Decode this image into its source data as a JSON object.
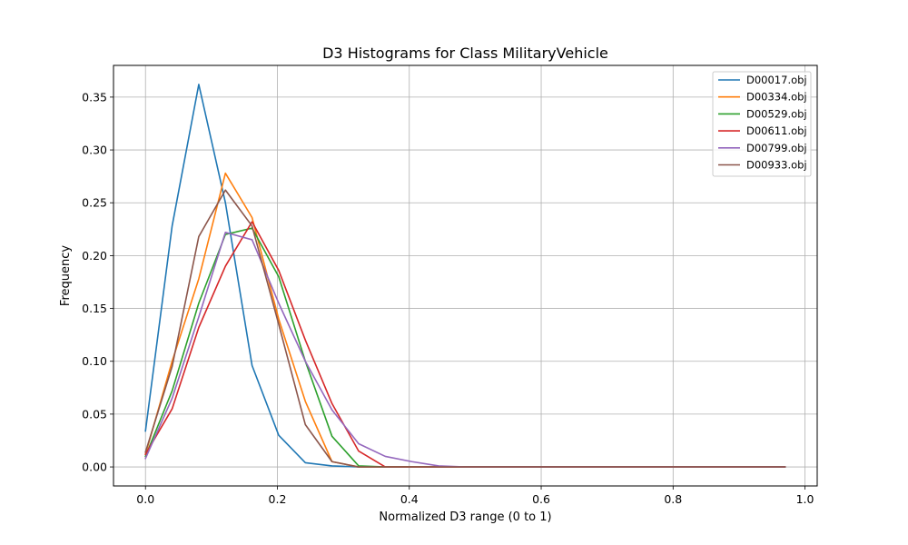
{
  "chart_data": {
    "type": "line",
    "title": "D3 Histograms for Class MilitaryVehicle",
    "xlabel": "Normalized D3 range (0 to 1)",
    "ylabel": "Frequency",
    "xlim": [
      -0.0485,
      1.0185
    ],
    "ylim": [
      -0.018,
      0.38
    ],
    "xticks": [
      0.0,
      0.2,
      0.4,
      0.6,
      0.8,
      1.0
    ],
    "xtick_labels": [
      "0.0",
      "0.2",
      "0.4",
      "0.6",
      "0.8",
      "1.0"
    ],
    "yticks": [
      0.0,
      0.05,
      0.1,
      0.15,
      0.2,
      0.25,
      0.3,
      0.35
    ],
    "ytick_labels": [
      "0.00",
      "0.05",
      "0.10",
      "0.15",
      "0.20",
      "0.25",
      "0.30",
      "0.35"
    ],
    "grid": true,
    "legend_position": "top-right",
    "x": [
      0.0,
      0.0404,
      0.0808,
      0.1212,
      0.1616,
      0.202,
      0.2424,
      0.2828,
      0.3232,
      0.3636,
      0.404,
      0.4444,
      0.4848,
      0.5253,
      0.5657,
      0.6061,
      0.6465,
      0.6869,
      0.7273,
      0.7677,
      0.8081,
      0.8485,
      0.8889,
      0.9293,
      0.9697
    ],
    "series": [
      {
        "name": "D00017.obj",
        "color": "#1f77b4",
        "values": [
          0.034,
          0.228,
          0.362,
          0.25,
          0.096,
          0.03,
          0.004,
          0.001,
          0.0,
          0.0,
          0.0,
          0.0,
          0.0,
          0.0,
          0.0,
          0.0,
          0.0,
          0.0,
          0.0,
          0.0,
          0.0,
          0.0,
          0.0,
          0.0,
          0.0
        ]
      },
      {
        "name": "D00334.obj",
        "color": "#ff7f0e",
        "values": [
          0.012,
          0.1,
          0.178,
          0.278,
          0.236,
          0.14,
          0.062,
          0.005,
          0.0,
          0.0,
          0.0,
          0.0,
          0.0,
          0.0,
          0.0,
          0.0,
          0.0,
          0.0,
          0.0,
          0.0,
          0.0,
          0.0,
          0.0,
          0.0,
          0.0
        ]
      },
      {
        "name": "D00529.obj",
        "color": "#2ca02c",
        "values": [
          0.01,
          0.072,
          0.155,
          0.22,
          0.226,
          0.18,
          0.1,
          0.029,
          0.001,
          0.0,
          0.0,
          0.0,
          0.0,
          0.0,
          0.0,
          0.0,
          0.0,
          0.0,
          0.0,
          0.0,
          0.0,
          0.0,
          0.0,
          0.0,
          0.0
        ]
      },
      {
        "name": "D00611.obj",
        "color": "#d62728",
        "values": [
          0.012,
          0.055,
          0.132,
          0.19,
          0.232,
          0.186,
          0.12,
          0.06,
          0.015,
          0.0,
          0.0,
          0.0,
          0.0,
          0.0,
          0.0,
          0.0,
          0.0,
          0.0,
          0.0,
          0.0,
          0.0,
          0.0,
          0.0,
          0.0,
          0.0
        ]
      },
      {
        "name": "D00799.obj",
        "color": "#9467bd",
        "values": [
          0.008,
          0.065,
          0.142,
          0.222,
          0.215,
          0.155,
          0.1,
          0.054,
          0.022,
          0.01,
          0.005,
          0.001,
          0.0,
          0.0,
          0.0,
          0.0,
          0.0,
          0.0,
          0.0,
          0.0,
          0.0,
          0.0,
          0.0,
          0.0,
          0.0
        ]
      },
      {
        "name": "D00933.obj",
        "color": "#8c564b",
        "values": [
          0.014,
          0.095,
          0.218,
          0.262,
          0.228,
          0.135,
          0.04,
          0.005,
          0.0,
          0.0,
          0.0,
          0.0,
          0.0,
          0.0,
          0.0,
          0.0,
          0.0,
          0.0,
          0.0,
          0.0,
          0.0,
          0.0,
          0.0,
          0.0,
          0.0
        ]
      }
    ]
  }
}
